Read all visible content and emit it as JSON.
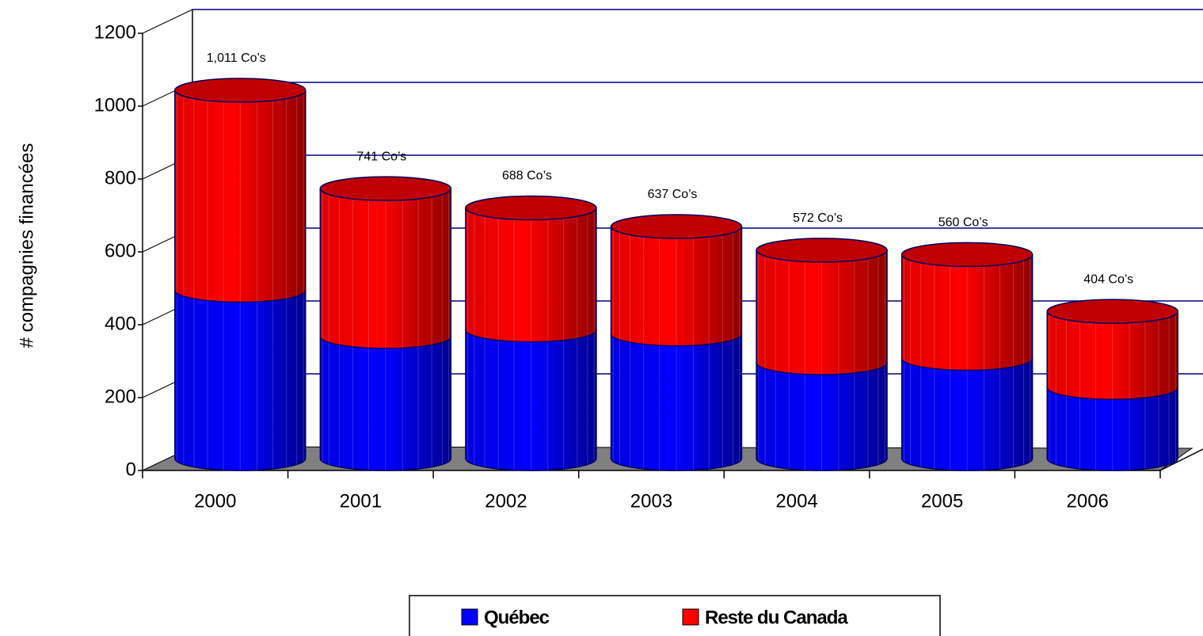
{
  "chart_data": {
    "type": "bar",
    "y_label": "# compagnies financées",
    "categories": [
      "2000",
      "2001",
      "2002",
      "2003",
      "2004",
      "2005",
      "2006"
    ],
    "series": [
      {
        "name": "Québec",
        "color": "#0000ff",
        "values": [
          462,
          335,
          353,
          342,
          263,
          275,
          195
        ]
      },
      {
        "name": "Reste du Canada",
        "color": "#ff0000",
        "values": [
          549,
          406,
          335,
          295,
          309,
          285,
          209
        ]
      }
    ],
    "totals": [
      1011,
      741,
      688,
      637,
      572,
      560,
      404
    ],
    "total_labels": [
      "1,011 Co’s",
      "741 Co’s",
      "688 Co’s",
      "637 Co’s",
      "572 Co’s",
      "560 Co’s",
      "404 Co’s"
    ],
    "ylim": [
      0,
      1200
    ],
    "yticks": [
      0,
      200,
      400,
      600,
      800,
      1000,
      1200
    ],
    "grid": true,
    "legend": "bottom"
  }
}
